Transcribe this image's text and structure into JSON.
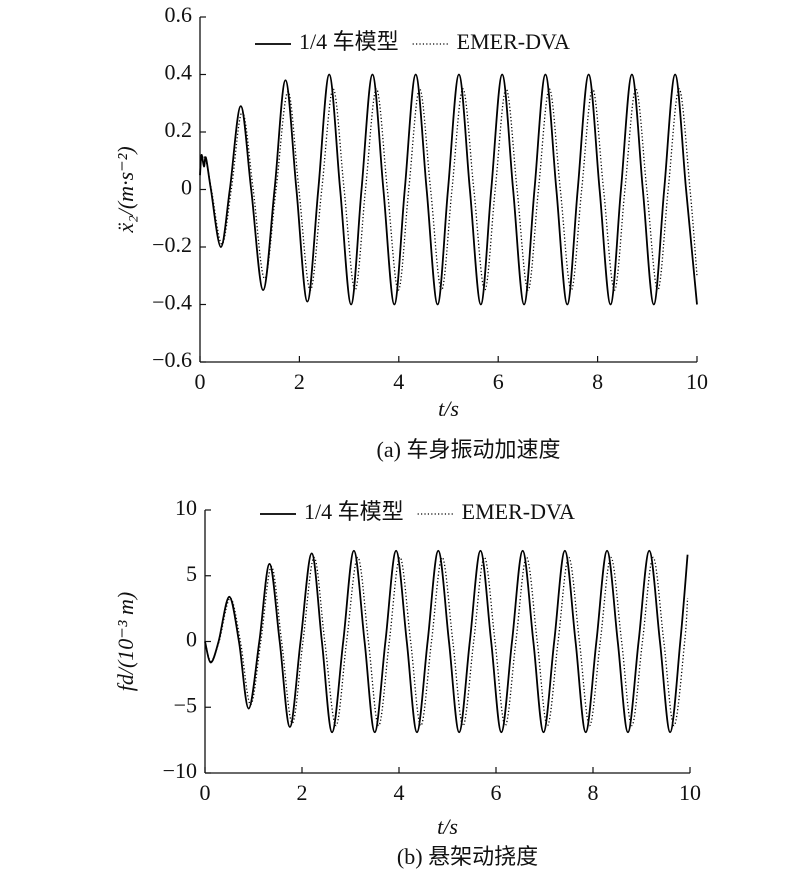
{
  "chart_data": [
    {
      "type": "line",
      "ylabel": "ẍ₂/(m·s⁻²)",
      "xlabel": "t/s",
      "caption": "(a) 车身振动加速度",
      "xlim": [
        0,
        10
      ],
      "xticks": [
        0,
        2,
        4,
        6,
        8,
        10
      ],
      "ylim": [
        -0.6,
        0.6
      ],
      "yticks": [
        {
          "value": -0.6,
          "label": "−0.6"
        },
        {
          "value": -0.4,
          "label": "−0.4"
        },
        {
          "value": -0.2,
          "label": "−0.2"
        },
        0,
        0.2,
        0.4,
        0.6
      ],
      "legend": "top",
      "series": [
        {
          "name": "1/4 车模型",
          "color": "#000000",
          "dash": "solid",
          "x": [
            0,
            0.03,
            0.08,
            0.12,
            0.22,
            0.42,
            0.6,
            0.82,
            1.03,
            1.27,
            1.5,
            1.72,
            1.94,
            2.16,
            2.38,
            2.6,
            2.82,
            3.04,
            3.25,
            3.47,
            3.69,
            3.91,
            4.12,
            4.34,
            4.56,
            4.78,
            4.99,
            5.21,
            5.43,
            5.65,
            5.86,
            6.08,
            6.3,
            6.52,
            6.73,
            6.95,
            7.17,
            7.39,
            7.6,
            7.82,
            8.04,
            8.26,
            8.47,
            8.69,
            8.91,
            9.13,
            9.34,
            9.56,
            9.78,
            10.0
          ],
          "values": [
            0.05,
            0.12,
            0.08,
            0.11,
            0,
            -0.2,
            0,
            0.29,
            0,
            -0.35,
            0,
            0.38,
            0,
            -0.39,
            0,
            0.4,
            0,
            -0.4,
            0,
            0.4,
            0,
            -0.4,
            0,
            0.4,
            0,
            -0.4,
            0,
            0.4,
            0,
            -0.4,
            0,
            0.4,
            0,
            -0.4,
            0,
            0.4,
            0,
            -0.4,
            0,
            0.4,
            0,
            -0.4,
            0,
            0.4,
            0,
            -0.4,
            0,
            0.4,
            0,
            -0.4
          ]
        },
        {
          "name": "EMER-DVA",
          "color": "#000000",
          "dash": "dotted",
          "x": [
            0,
            0.03,
            0.12,
            0.23,
            0.44,
            0.63,
            0.85,
            1.07,
            1.3,
            1.53,
            1.77,
            1.99,
            2.22,
            2.45,
            2.68,
            2.9,
            3.12,
            3.33,
            3.55,
            3.77,
            3.99,
            4.2,
            4.42,
            4.64,
            4.86,
            5.07,
            5.29,
            5.51,
            5.73,
            5.94,
            6.16,
            6.38,
            6.6,
            6.81,
            7.03,
            7.25,
            7.47,
            7.68,
            7.9,
            8.12,
            8.34,
            8.55,
            8.77,
            8.99,
            9.21,
            9.42,
            9.64,
            9.86,
            10.0
          ],
          "values": [
            0.05,
            0.11,
            0.1,
            0,
            -0.19,
            0,
            0.27,
            0,
            -0.31,
            0,
            0.34,
            0,
            -0.35,
            0,
            0.35,
            0,
            -0.35,
            0,
            0.35,
            0,
            -0.35,
            0,
            0.35,
            0,
            -0.35,
            0,
            0.35,
            0,
            -0.35,
            0,
            0.35,
            0,
            -0.35,
            0,
            0.35,
            0,
            -0.35,
            0,
            0.35,
            0,
            -0.35,
            0,
            0.35,
            0,
            -0.35,
            0,
            0.35,
            0,
            -0.3
          ]
        }
      ]
    },
    {
      "type": "line",
      "ylabel": "fd/(10⁻³ m)",
      "xlabel": "t/s",
      "caption": "(b) 悬架动挠度",
      "xlim": [
        0,
        10
      ],
      "xticks": [
        0,
        2,
        4,
        6,
        8,
        10
      ],
      "ylim": [
        -10,
        10
      ],
      "yticks": [
        {
          "value": -10,
          "label": "−10"
        },
        {
          "value": -5,
          "label": "−5"
        },
        0,
        5,
        10
      ],
      "legend": "top",
      "series": [
        {
          "name": "1/4 车模型",
          "color": "#000000",
          "dash": "solid",
          "x": [
            0,
            0.12,
            0.28,
            0.5,
            0.7,
            0.9,
            1.12,
            1.33,
            1.54,
            1.75,
            1.97,
            2.2,
            2.41,
            2.62,
            2.85,
            3.07,
            3.29,
            3.5,
            3.72,
            3.94,
            4.16,
            4.37,
            4.59,
            4.81,
            5.03,
            5.24,
            5.46,
            5.68,
            5.9,
            6.11,
            6.33,
            6.55,
            6.77,
            6.98,
            7.2,
            7.42,
            7.64,
            7.85,
            8.07,
            8.29,
            8.51,
            8.72,
            8.94,
            9.16,
            9.38,
            9.59,
            9.8,
            9.95
          ],
          "values": [
            0,
            -1.6,
            0,
            3.4,
            0,
            -5.1,
            0,
            5.9,
            0,
            -6.5,
            0,
            6.7,
            0,
            -6.9,
            0,
            6.9,
            0,
            -6.9,
            0,
            6.9,
            0,
            -6.9,
            0,
            6.9,
            0,
            -6.9,
            0,
            6.9,
            0,
            -6.9,
            0,
            6.9,
            0,
            -6.9,
            0,
            6.9,
            0,
            -6.9,
            0,
            6.9,
            0,
            -6.9,
            0,
            6.9,
            0,
            -6.9,
            0,
            6.6
          ]
        },
        {
          "name": "EMER-DVA",
          "color": "#000000",
          "dash": "dotted",
          "x": [
            0,
            0.12,
            0.29,
            0.52,
            0.73,
            0.94,
            1.15,
            1.37,
            1.58,
            1.8,
            2.02,
            2.25,
            2.47,
            2.7,
            2.92,
            3.15,
            3.37,
            3.58,
            3.8,
            4.02,
            4.24,
            4.45,
            4.67,
            4.89,
            5.11,
            5.32,
            5.54,
            5.76,
            5.98,
            6.19,
            6.41,
            6.63,
            6.85,
            7.06,
            7.28,
            7.5,
            7.72,
            7.93,
            8.15,
            8.37,
            8.59,
            8.8,
            9.02,
            9.24,
            9.46,
            9.67,
            9.89,
            9.95
          ],
          "values": [
            0,
            -1.5,
            0,
            3.3,
            0,
            -4.8,
            0,
            5.7,
            0,
            -6.2,
            0,
            6.4,
            0,
            -6.4,
            0,
            6.4,
            0,
            -6.4,
            0,
            6.4,
            0,
            -6.4,
            0,
            6.4,
            0,
            -6.4,
            0,
            6.4,
            0,
            -6.4,
            0,
            6.4,
            0,
            -6.4,
            0,
            6.4,
            0,
            -6.4,
            0,
            6.4,
            0,
            -6.4,
            0,
            6.4,
            0,
            -6.4,
            0,
            3.3
          ]
        }
      ]
    }
  ]
}
